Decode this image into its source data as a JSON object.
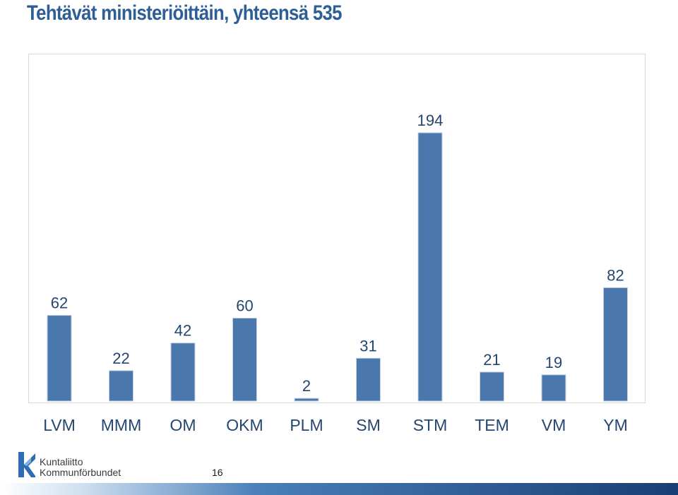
{
  "title": "Tehtävät ministeriöittäin, yhteensä 535",
  "colors": {
    "bar": "#4a78ad",
    "title": "#2e5e96",
    "label": "#24466f"
  },
  "logo": {
    "line1": "Kuntaliitto",
    "line2": "Kommunförbundet"
  },
  "page_number": "16",
  "chart_data": {
    "type": "bar",
    "title": "Tehtävät ministeriöittäin, yhteensä 535",
    "categories": [
      "LVM",
      "MMM",
      "OM",
      "OKM",
      "PLM",
      "SM",
      "STM",
      "TEM",
      "VM",
      "YM"
    ],
    "values": [
      62,
      22,
      42,
      60,
      2,
      31,
      194,
      21,
      19,
      82
    ],
    "xlabel": "",
    "ylabel": "",
    "ylim": [
      0,
      194
    ],
    "grid": false,
    "legend": "none",
    "data_labels": true
  }
}
